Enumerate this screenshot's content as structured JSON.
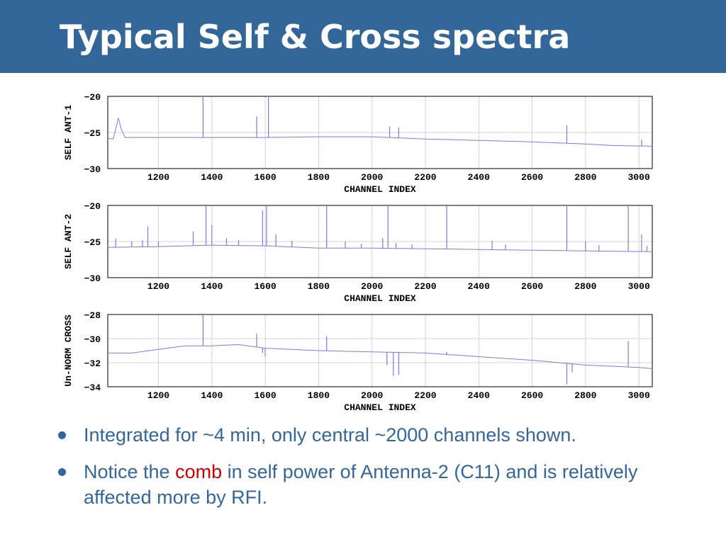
{
  "slide": {
    "title": "Typical Self & Cross spectra"
  },
  "colors": {
    "header_bg": "#336699",
    "text": "#336699",
    "highlight": "#cc0000",
    "trace": "#7a7ae8"
  },
  "bullets": [
    {
      "text": "Integrated for ~4 min, only central ~2000 channels shown."
    },
    {
      "pre": "Notice the ",
      "highlight": "comb",
      "post": " in self power of Antenna-2 (C11) and is relatively affected more by RFI."
    }
  ],
  "chart_data": [
    {
      "type": "line",
      "ylabel": "SELF ANT-1",
      "xlabel": "CHANNEL INDEX",
      "xlim": [
        1010,
        3050
      ],
      "ylim": [
        -30,
        -20
      ],
      "xticks": [
        1200,
        1400,
        1600,
        1800,
        2000,
        2200,
        2400,
        2600,
        2800,
        3000
      ],
      "yticks": [
        -20,
        -25,
        -30
      ],
      "grid": true,
      "baseline": [
        [
          1010,
          -25.8
        ],
        [
          1030,
          -25.9
        ],
        [
          1040,
          -24.5
        ],
        [
          1050,
          -23.0
        ],
        [
          1060,
          -24.5
        ],
        [
          1075,
          -25.7
        ],
        [
          1300,
          -25.7
        ],
        [
          1600,
          -25.7
        ],
        [
          1800,
          -25.6
        ],
        [
          2000,
          -25.6
        ],
        [
          2200,
          -25.9
        ],
        [
          2400,
          -26.1
        ],
        [
          2600,
          -26.3
        ],
        [
          2800,
          -26.6
        ],
        [
          2900,
          -26.8
        ],
        [
          3050,
          -26.9
        ]
      ],
      "spikes": [
        [
          1367,
          -20.0
        ],
        [
          1568,
          -22.8
        ],
        [
          1612,
          -20.0
        ],
        [
          2066,
          -24.2
        ],
        [
          2100,
          -24.3
        ],
        [
          2730,
          -24.0
        ],
        [
          3010,
          -26.0
        ]
      ]
    },
    {
      "type": "line",
      "ylabel": "SELF ANT-2",
      "xlabel": "CHANNEL INDEX",
      "xlim": [
        1010,
        3050
      ],
      "ylim": [
        -30,
        -20
      ],
      "xticks": [
        1200,
        1400,
        1600,
        1800,
        2000,
        2200,
        2400,
        2600,
        2800,
        3000
      ],
      "yticks": [
        -20,
        -25,
        -30
      ],
      "grid": true,
      "baseline": [
        [
          1010,
          -25.8
        ],
        [
          1200,
          -25.7
        ],
        [
          1400,
          -25.5
        ],
        [
          1600,
          -25.6
        ],
        [
          1800,
          -25.9
        ],
        [
          2000,
          -25.9
        ],
        [
          2200,
          -26.0
        ],
        [
          2400,
          -26.1
        ],
        [
          2600,
          -26.2
        ],
        [
          2800,
          -26.3
        ],
        [
          3050,
          -26.4
        ]
      ],
      "spikes": [
        [
          1040,
          -24.6
        ],
        [
          1100,
          -25.0
        ],
        [
          1140,
          -24.8
        ],
        [
          1160,
          -22.9
        ],
        [
          1200,
          -25.0
        ],
        [
          1330,
          -23.6
        ],
        [
          1378,
          -20.0
        ],
        [
          1400,
          -22.7
        ],
        [
          1455,
          -24.5
        ],
        [
          1500,
          -24.8
        ],
        [
          1590,
          -20.7
        ],
        [
          1605,
          -20.0
        ],
        [
          1640,
          -24.0
        ],
        [
          1700,
          -24.9
        ],
        [
          1830,
          -20.0
        ],
        [
          1900,
          -25.0
        ],
        [
          1960,
          -25.3
        ],
        [
          2040,
          -24.5
        ],
        [
          2060,
          -20.0
        ],
        [
          2090,
          -25.2
        ],
        [
          2150,
          -25.4
        ],
        [
          2280,
          -20.0
        ],
        [
          2450,
          -24.9
        ],
        [
          2500,
          -25.4
        ],
        [
          2730,
          -20.0
        ],
        [
          2800,
          -25.0
        ],
        [
          2850,
          -25.5
        ],
        [
          2960,
          -20.0
        ],
        [
          3010,
          -24.0
        ],
        [
          3030,
          -25.6
        ]
      ]
    },
    {
      "type": "line",
      "ylabel": "Un-NORM CROSS",
      "xlabel": "CHANNEL INDEX",
      "xlim": [
        1010,
        3050
      ],
      "ylim": [
        -34,
        -28
      ],
      "xticks": [
        1200,
        1400,
        1600,
        1800,
        2000,
        2200,
        2400,
        2600,
        2800,
        3000
      ],
      "yticks": [
        -28,
        -30,
        -32,
        -34
      ],
      "grid": true,
      "baseline": [
        [
          1010,
          -31.2
        ],
        [
          1100,
          -31.2
        ],
        [
          1200,
          -30.9
        ],
        [
          1300,
          -30.6
        ],
        [
          1400,
          -30.6
        ],
        [
          1500,
          -30.5
        ],
        [
          1600,
          -30.8
        ],
        [
          1800,
          -31.0
        ],
        [
          2000,
          -31.1
        ],
        [
          2200,
          -31.2
        ],
        [
          2400,
          -31.5
        ],
        [
          2600,
          -31.8
        ],
        [
          2800,
          -32.2
        ],
        [
          3000,
          -32.4
        ],
        [
          3050,
          -32.5
        ]
      ],
      "spikes": [
        [
          1367,
          -28.0
        ],
        [
          1568,
          -29.6
        ],
        [
          1590,
          -31.2
        ],
        [
          1600,
          -31.5
        ],
        [
          1830,
          -29.8
        ],
        [
          2056,
          -32.2
        ],
        [
          2080,
          -33.1
        ],
        [
          2100,
          -33.0
        ],
        [
          2280,
          -31.1
        ],
        [
          2730,
          -33.8
        ],
        [
          2750,
          -32.8
        ],
        [
          2960,
          -30.2
        ]
      ]
    }
  ]
}
